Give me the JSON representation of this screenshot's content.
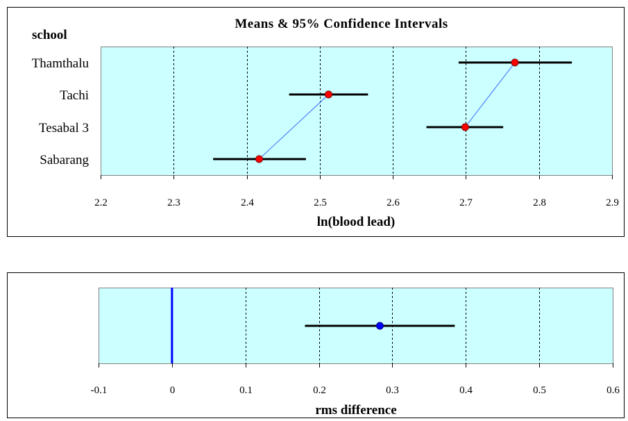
{
  "chart_data": [
    {
      "type": "scatter",
      "title": "Means & 95% Confidence Intervals",
      "ylabel": "school",
      "xlabel": "ln(blood lead)",
      "xlim": [
        2.2,
        2.9
      ],
      "xticks": [
        "2.2",
        "2.3",
        "2.4",
        "2.5",
        "2.6",
        "2.7",
        "2.8",
        "2.9"
      ],
      "grid": "vertical dashed",
      "colors": {
        "plot_bg": "#ccffff",
        "marker": "#ff0000",
        "connector": "#3366ff",
        "interval": "#000000"
      },
      "categories": [
        "Thamthalu",
        "Tachi",
        "Tesabal 3",
        "Sabarang"
      ],
      "series": [
        {
          "points": [
            {
              "category": "Thamthalu",
              "mean": 2.767,
              "lower": 2.69,
              "upper": 2.845
            },
            {
              "category": "Tachi",
              "mean": 2.512,
              "lower": 2.458,
              "upper": 2.566
            },
            {
              "category": "Tesabal 3",
              "mean": 2.699,
              "lower": 2.646,
              "upper": 2.751
            },
            {
              "category": "Sabarang",
              "mean": 2.417,
              "lower": 2.354,
              "upper": 2.481
            }
          ]
        }
      ],
      "connectors": [
        [
          "Thamthalu",
          "Tesabal 3"
        ],
        [
          "Tachi",
          "Sabarang"
        ]
      ]
    },
    {
      "type": "scatter",
      "title": "",
      "xlabel": "rms difference",
      "xlim": [
        -0.1,
        0.6
      ],
      "xticks": [
        "-0.1",
        "0",
        "0.1",
        "0.2",
        "0.3",
        "0.4",
        "0.5",
        "0.6"
      ],
      "grid": "vertical dashed",
      "reference_line": 0,
      "colors": {
        "plot_bg": "#ccffff",
        "marker": "#0000ff",
        "reference": "#0000ff",
        "interval": "#000000"
      },
      "points": [
        {
          "mean": 0.283,
          "lower": 0.181,
          "upper": 0.385
        }
      ]
    }
  ]
}
